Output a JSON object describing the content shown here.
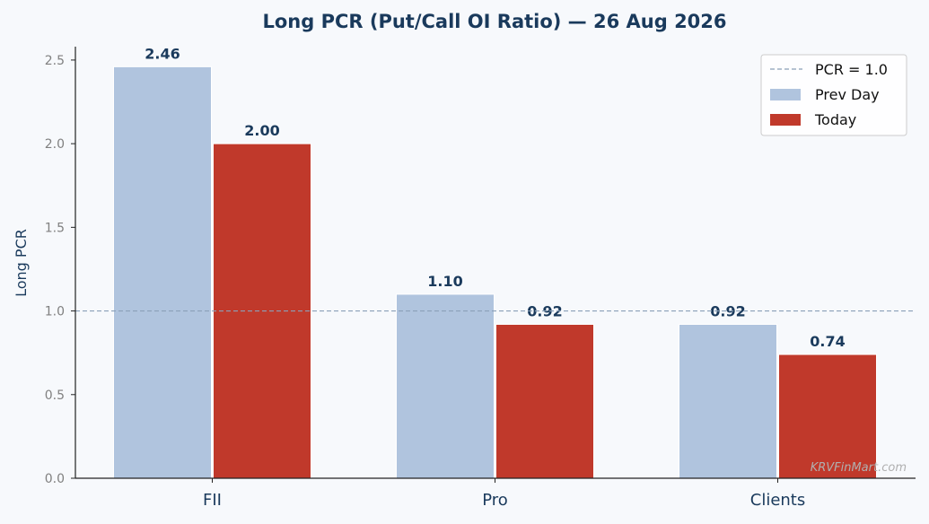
{
  "chart_data": {
    "type": "bar",
    "title": "Long PCR (Put/Call OI Ratio) — 26 Aug 2026",
    "xlabel": "",
    "ylabel": "Long PCR",
    "categories": [
      "FII",
      "Pro",
      "Clients"
    ],
    "series": [
      {
        "name": "Prev Day",
        "values": [
          2.46,
          1.1,
          0.92
        ],
        "labels": [
          "2.46",
          "1.10",
          "0.92"
        ],
        "color": "#b0c4de"
      },
      {
        "name": "Today",
        "values": [
          2.0,
          0.92,
          0.74
        ],
        "labels": [
          "2.00",
          "0.92",
          "0.74"
        ],
        "color": "#c0392b"
      }
    ],
    "ylim": [
      0,
      2.58
    ],
    "yticks": [
      0.0,
      0.5,
      1.0,
      1.5,
      2.0,
      2.5
    ],
    "ytick_labels": [
      "0.0",
      "0.5",
      "1.0",
      "1.5",
      "2.0",
      "2.5"
    ],
    "reference_line": {
      "value": 1.0,
      "label": "PCR = 1.0",
      "color": "#8aa0b8"
    },
    "grid": false,
    "legend_position": "top-right",
    "watermark": "KRVFinMart.com"
  }
}
